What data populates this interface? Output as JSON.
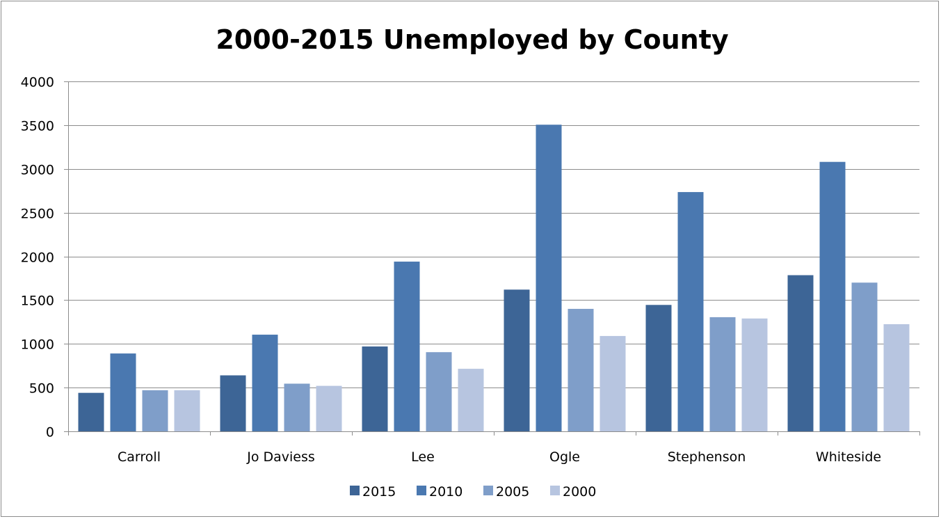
{
  "chart_data": {
    "type": "bar",
    "title": "2000-2015 Unemployed by County",
    "xlabel": "",
    "ylabel": "",
    "ylim": [
      0,
      4000
    ],
    "yticks": [
      0,
      500,
      1000,
      1500,
      2000,
      2500,
      3000,
      3500,
      4000
    ],
    "grid": true,
    "legend_position": "bottom",
    "categories": [
      "Carroll",
      "Jo Daviess",
      "Lee",
      "Ogle",
      "Stephenson",
      "Whiteside"
    ],
    "series": [
      {
        "name": "2015",
        "color": "#3d6596",
        "values": [
          440,
          640,
          970,
          1620,
          1445,
          1785
        ]
      },
      {
        "name": "2010",
        "color": "#4a78b0",
        "values": [
          890,
          1105,
          1940,
          3505,
          2735,
          3080
        ]
      },
      {
        "name": "2005",
        "color": "#7f9ec9",
        "values": [
          470,
          545,
          905,
          1400,
          1305,
          1700
        ]
      },
      {
        "name": "2000",
        "color": "#b7c5e0",
        "values": [
          470,
          520,
          715,
          1090,
          1290,
          1225
        ]
      }
    ]
  }
}
